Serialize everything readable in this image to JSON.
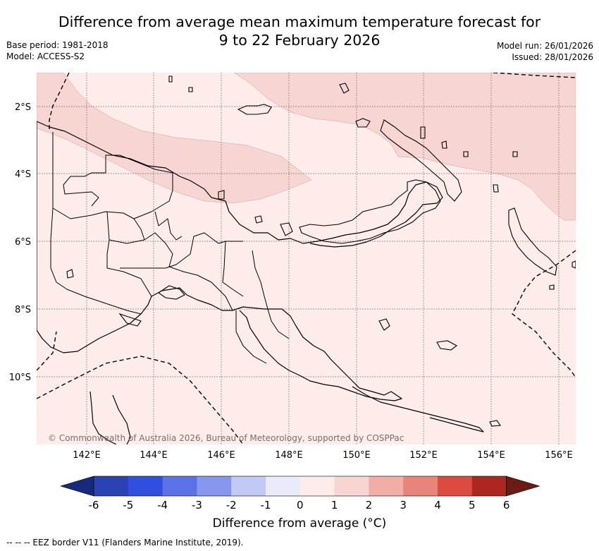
{
  "header": {
    "title_line1": "Difference from average mean maximum temperature forecast for",
    "title_line2": "9 to 22 February 2026",
    "base_period": "Base period: 1981-2018",
    "model": "Model: ACCESS-S2",
    "model_run": "Model run: 26/01/2026",
    "issued": "Issued: 28/01/2026"
  },
  "map": {
    "copyright": "© Commonwealth of Australia 2026, Bureau of Meteorology, supported by COSPPac",
    "lat_labels": [
      "2°S",
      "4°S",
      "6°S",
      "8°S",
      "10°S"
    ],
    "lon_labels": [
      "142°E",
      "144°E",
      "146°E",
      "148°E",
      "150°E",
      "152°E",
      "154°E",
      "156°E"
    ],
    "colors": {
      "anomaly_0_to_1": "#fdecea",
      "anomaly_1_to_2": "#f7d5d2",
      "coastline": "#000000"
    }
  },
  "colorbar": {
    "title": "Difference from average (°C)",
    "tick_labels": [
      "-6",
      "-5",
      "-4",
      "-3",
      "-2",
      "-1",
      "0",
      "1",
      "2",
      "3",
      "4",
      "5",
      "6"
    ],
    "colors": [
      "#16297a",
      "#2a42b3",
      "#2e4fe0",
      "#5a72e6",
      "#8596ec",
      "#c3c9f5",
      "#e9ebfb",
      "#fdecea",
      "#f7d5d2",
      "#f0aea7",
      "#e8847a",
      "#dc4b3f",
      "#ad2620",
      "#6b1a16"
    ]
  },
  "footer": {
    "eez_note": "-- -- -- EEZ border V11 (Flanders Marine Institute, 2019)."
  }
}
